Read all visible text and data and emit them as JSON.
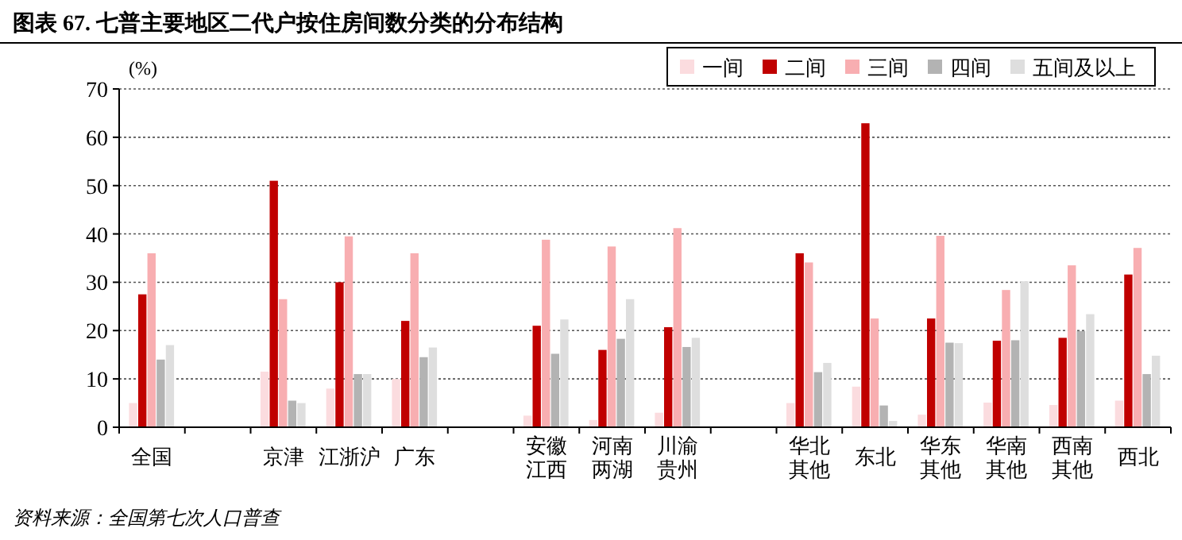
{
  "chart_data": {
    "type": "bar",
    "title": "图表 67. 七普主要地区二代户按住房间数分类的分布结构",
    "ylabel": "(%)",
    "annotations": [
      "资料来源：全国第七次人口普查"
    ],
    "categories": [
      "全国",
      null,
      "京津",
      "江浙沪",
      "广东",
      null,
      "安徽江西",
      "河南两湖",
      "川渝贵州",
      null,
      "华北其他",
      "东北",
      "华东其他",
      "华南其他",
      "西南其他",
      "西北"
    ],
    "series": [
      {
        "name": "一间",
        "color": "#fbdcdf",
        "values": [
          5,
          null,
          11.5,
          8,
          10,
          null,
          2.4,
          1.5,
          3,
          null,
          5,
          8.4,
          2.6,
          5.1,
          4.6,
          5.5
        ]
      },
      {
        "name": "二间",
        "color": "#c00000",
        "values": [
          27.5,
          null,
          51,
          30,
          22,
          null,
          21,
          16,
          20.7,
          null,
          36,
          62.9,
          22.5,
          17.9,
          18.5,
          31.6
        ]
      },
      {
        "name": "三间",
        "color": "#f8aeb1",
        "values": [
          36,
          null,
          26.5,
          39.5,
          36,
          null,
          38.8,
          37.4,
          41.2,
          null,
          34.1,
          22.5,
          39.6,
          28.4,
          33.5,
          37.1
        ]
      },
      {
        "name": "四间",
        "color": "#b3b3b3",
        "values": [
          14,
          null,
          5.5,
          11,
          14.5,
          null,
          15.2,
          18.3,
          16.6,
          null,
          11.4,
          4.5,
          17.5,
          18,
          19.9,
          11
        ]
      },
      {
        "name": "五间及以上",
        "color": "#dedede",
        "values": [
          17,
          null,
          5,
          11,
          16.5,
          null,
          22.3,
          26.5,
          18.5,
          null,
          13.3,
          1.3,
          17.4,
          30.2,
          23.4,
          14.8
        ]
      }
    ],
    "ylim": [
      0,
      70
    ],
    "yticks": [
      0,
      10,
      20,
      30,
      40,
      50,
      60,
      70
    ],
    "grid": "y",
    "legend": "top right"
  }
}
